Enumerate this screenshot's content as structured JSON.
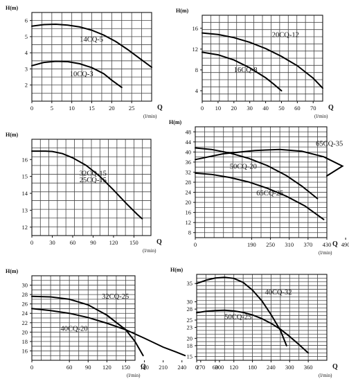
{
  "chart_data": [
    {
      "type": "line",
      "ylabel": "H(m)",
      "xlabel": "Q",
      "xunit": "(l/min)",
      "xlim": [
        0,
        30
      ],
      "ylim": [
        1,
        6.5
      ],
      "nx": 12,
      "ny": 11,
      "xticks": [
        0,
        5,
        10,
        15,
        20,
        25
      ],
      "yticks": [
        2,
        3,
        4,
        5,
        6
      ],
      "series": [
        {
          "name": "14CQ-5",
          "x": [
            0,
            3,
            6,
            9,
            12,
            15,
            18,
            21,
            24,
            27,
            30
          ],
          "y": [
            5.65,
            5.75,
            5.77,
            5.72,
            5.6,
            5.4,
            5.1,
            4.7,
            4.2,
            3.65,
            3.1
          ]
        },
        {
          "name": "10CQ-3",
          "x": [
            0,
            3,
            6,
            9,
            12,
            15,
            18,
            20,
            22.5
          ],
          "y": [
            3.2,
            3.4,
            3.47,
            3.45,
            3.32,
            3.08,
            2.7,
            2.3,
            1.85
          ]
        }
      ],
      "labels": [
        {
          "text": "14CQ-5",
          "x": 12,
          "y": 4.7
        },
        {
          "text": "10CQ-3",
          "x": 9.5,
          "y": 2.55
        }
      ]
    },
    {
      "type": "line",
      "ylabel": "H(m)",
      "xlabel": "Q",
      "xunit": "(l/min)",
      "xlim": [
        0,
        76
      ],
      "ylim": [
        2,
        18.5
      ],
      "nx": 14,
      "ny": 12,
      "xticks": [
        0,
        10,
        20,
        30,
        40,
        50,
        60,
        70
      ],
      "yticks": [
        4,
        8,
        12,
        16
      ],
      "series": [
        {
          "name": "20CQ-12",
          "x": [
            0,
            10,
            20,
            30,
            40,
            50,
            60,
            70,
            76
          ],
          "y": [
            15.1,
            14.8,
            14.2,
            13.3,
            12.1,
            10.6,
            8.8,
            6.4,
            4.5
          ]
        },
        {
          "name": "16CQ-8",
          "x": [
            0,
            10,
            20,
            30,
            40,
            45,
            50
          ],
          "y": [
            11.4,
            10.9,
            9.9,
            8.4,
            6.5,
            5.3,
            4.0
          ]
        }
      ],
      "labels": [
        {
          "text": "20CQ-12",
          "x": 44,
          "y": 14.3
        },
        {
          "text": "16CQ-8",
          "x": 20,
          "y": 7.6
        }
      ]
    },
    {
      "type": "line",
      "ylabel": "H(m)",
      "xlabel": "Q",
      "xunit": "(l/min)",
      "xlim": [
        0,
        175
      ],
      "ylim": [
        11.5,
        17.2
      ],
      "nx": 14,
      "ny": 11,
      "xticks": [
        0,
        30,
        60,
        90,
        120,
        150
      ],
      "yticks": [
        12,
        13,
        14,
        15,
        16
      ],
      "series": [
        {
          "name": "32CQ-15 / 25CQ-15",
          "x": [
            0,
            20,
            30,
            45,
            60,
            80,
            100,
            120,
            140,
            155,
            162
          ],
          "y": [
            16.5,
            16.5,
            16.48,
            16.35,
            16.1,
            15.65,
            15.0,
            14.2,
            13.35,
            12.75,
            12.5
          ]
        }
      ],
      "labels": [
        {
          "text": "32CQ-15",
          "x": 70,
          "y": 15.05
        },
        {
          "text": "25CQ-15",
          "x": 70,
          "y": 14.65
        }
      ]
    },
    {
      "type": "line",
      "ylabel": "H(m)",
      "xlabel": "Q",
      "xunit": "(l/min)",
      "xlim": [
        0,
        530
      ],
      "ylim": [
        6,
        50
      ],
      "nx": 14,
      "ny": 22,
      "xticks": [
        0,
        190,
        250,
        310,
        370,
        430,
        490
      ],
      "yticks": [
        8,
        12,
        16,
        20,
        24,
        28,
        32,
        36,
        40,
        44,
        48
      ],
      "tick_positions": [
        0,
        70,
        130,
        190,
        250,
        310,
        370,
        430,
        490
      ],
      "series": [
        {
          "name": "65CQ-35",
          "x": [
            0,
            100,
            200,
            280,
            350,
            420,
            480,
            530
          ],
          "y": [
            37,
            39.3,
            40.6,
            41,
            40.3,
            38.1,
            34.4,
            30.5
          ]
        },
        {
          "name": "50CQ-20",
          "x": [
            0,
            60,
            120,
            180,
            240,
            300,
            350,
            400
          ],
          "y": [
            41.6,
            41,
            39.6,
            37.5,
            34.6,
            30.7,
            26.5,
            21.5
          ]
        },
        {
          "name": "65CQ-25",
          "x": [
            0,
            60,
            120,
            180,
            240,
            300,
            360,
            420
          ],
          "y": [
            31.6,
            31.1,
            29.9,
            28.1,
            25.6,
            22.5,
            18.6,
            13.2
          ]
        }
      ],
      "labels": [
        {
          "text": "65CQ-35",
          "x": 395,
          "y": 42.5
        },
        {
          "text": "50CQ-20",
          "x": 120,
          "y": 33.4
        },
        {
          "text": "65CQ-25",
          "x": 205,
          "y": 22.8
        }
      ]
    },
    {
      "type": "line",
      "ylabel": "H(m)",
      "xlabel": "Q",
      "xunit": "(l/min)",
      "xlim": [
        0,
        330
      ],
      "ylim": [
        14,
        32
      ],
      "nx": 11,
      "ny": 18,
      "xticks": [
        0,
        60,
        90,
        120,
        150,
        180,
        210,
        240,
        270,
        300
      ],
      "yticks": [
        16,
        18,
        20,
        22,
        24,
        26,
        28,
        30
      ],
      "tick_positions": [
        0,
        30,
        60,
        90,
        120,
        150,
        180,
        210,
        240,
        270,
        300
      ],
      "series": [
        {
          "name": "32CQ-25",
          "x": [
            0,
            30,
            60,
            90,
            120,
            150,
            165,
            178
          ],
          "y": [
            27.6,
            27.5,
            27,
            25.8,
            23.6,
            20.5,
            18,
            15
          ]
        },
        {
          "name": "40CQ-20",
          "x": [
            0,
            30,
            60,
            90,
            120,
            150,
            180,
            210,
            230,
            245
          ],
          "y": [
            25,
            24.6,
            24,
            23.1,
            21.9,
            20.5,
            18.7,
            16.8,
            15.8,
            15
          ]
        }
      ],
      "labels": [
        {
          "text": "32CQ-25",
          "x": 112,
          "y": 27.1
        },
        {
          "text": "40CQ-20",
          "x": 46,
          "y": 20.3
        }
      ]
    },
    {
      "type": "line",
      "ylabel": "H(m)",
      "xlabel": "Q",
      "xunit": "(l/min)",
      "xlim": [
        0,
        420
      ],
      "ylim": [
        14,
        37.5
      ],
      "nx": 14,
      "ny": 23,
      "xticks": [
        0,
        60,
        120,
        180,
        240,
        300,
        360
      ],
      "yticks": [
        15,
        18,
        20,
        23,
        25,
        28,
        30,
        35
      ],
      "tick_positions": [
        0,
        60,
        120,
        180,
        240,
        300,
        360
      ],
      "series": [
        {
          "name": "40CQ-32",
          "x": [
            0,
            30,
            60,
            90,
            120,
            150,
            180,
            210,
            240,
            270,
            290
          ],
          "y": [
            35,
            35.9,
            36.5,
            36.7,
            36.4,
            35.3,
            33.2,
            30.3,
            26.5,
            22.2,
            18
          ]
        },
        {
          "name": "50CQ-25",
          "x": [
            0,
            30,
            60,
            90,
            120,
            150,
            180,
            210,
            240,
            270,
            300,
            330,
            360
          ],
          "y": [
            27,
            27.4,
            27.6,
            27.7,
            27.5,
            27.1,
            26.4,
            25.4,
            24.1,
            22.5,
            20.5,
            18.3,
            16
          ]
        }
      ],
      "labels": [
        {
          "text": "40CQ-32",
          "x": 220,
          "y": 32
        },
        {
          "text": "50CQ-25",
          "x": 90,
          "y": 25.3
        }
      ]
    }
  ]
}
